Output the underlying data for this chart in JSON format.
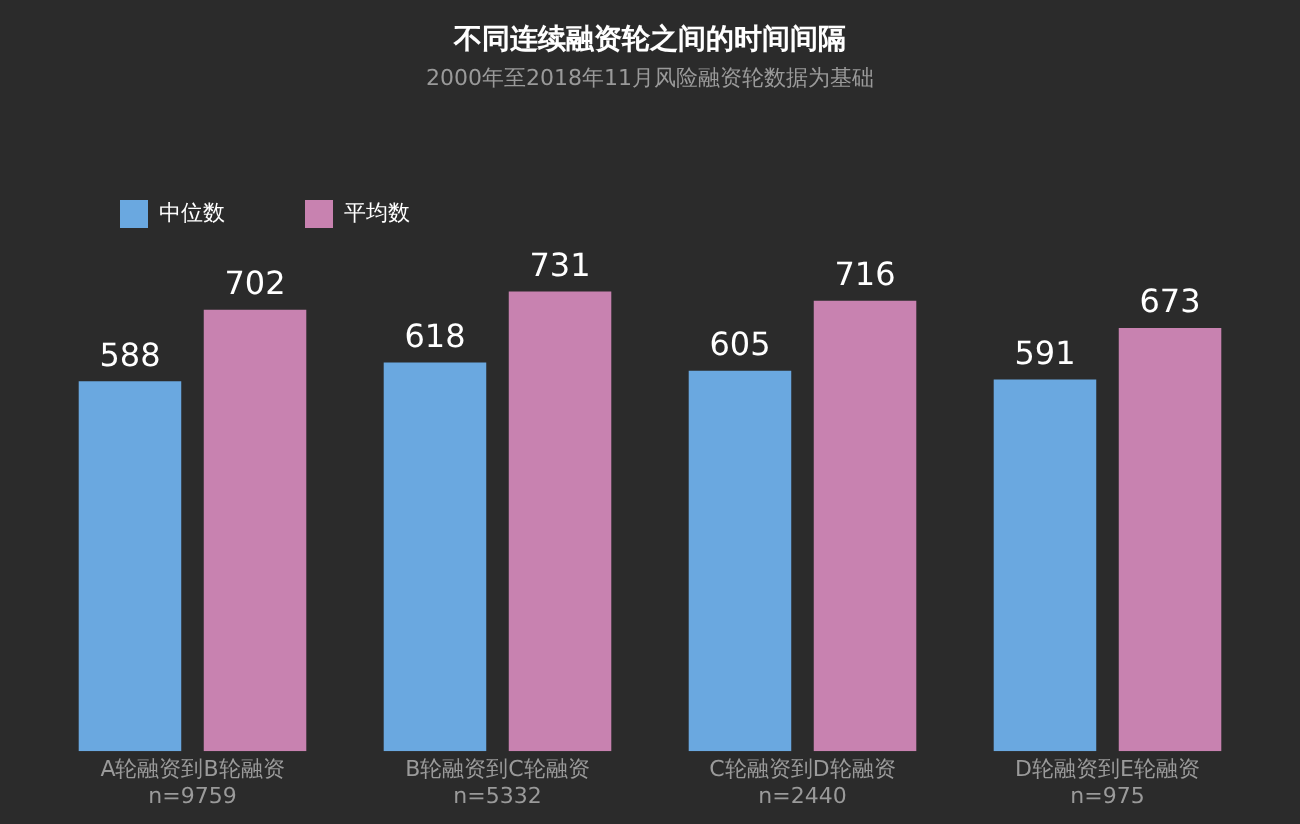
{
  "chart_data": {
    "type": "bar",
    "title": "不同连续融资轮之间的时间间隔",
    "subtitle": "2000年至2018年11月风险融资轮数据为基础",
    "categories": [
      "A轮融资到B轮融资\nn=9759",
      "B轮融资到C轮融资\nn=5332",
      "C轮融资到D轮融资\nn=2440",
      "D轮融资到E轮融资\nn=975"
    ],
    "series": [
      {
        "name": "中位数",
        "color": "#6aa8e0",
        "values": [
          588,
          618,
          605,
          591
        ]
      },
      {
        "name": "平均数",
        "color": "#c882b0",
        "values": [
          702,
          731,
          716,
          673
        ]
      }
    ],
    "data_labels": true,
    "legend": "top left",
    "grid": false,
    "tick_labels": "x"
  }
}
